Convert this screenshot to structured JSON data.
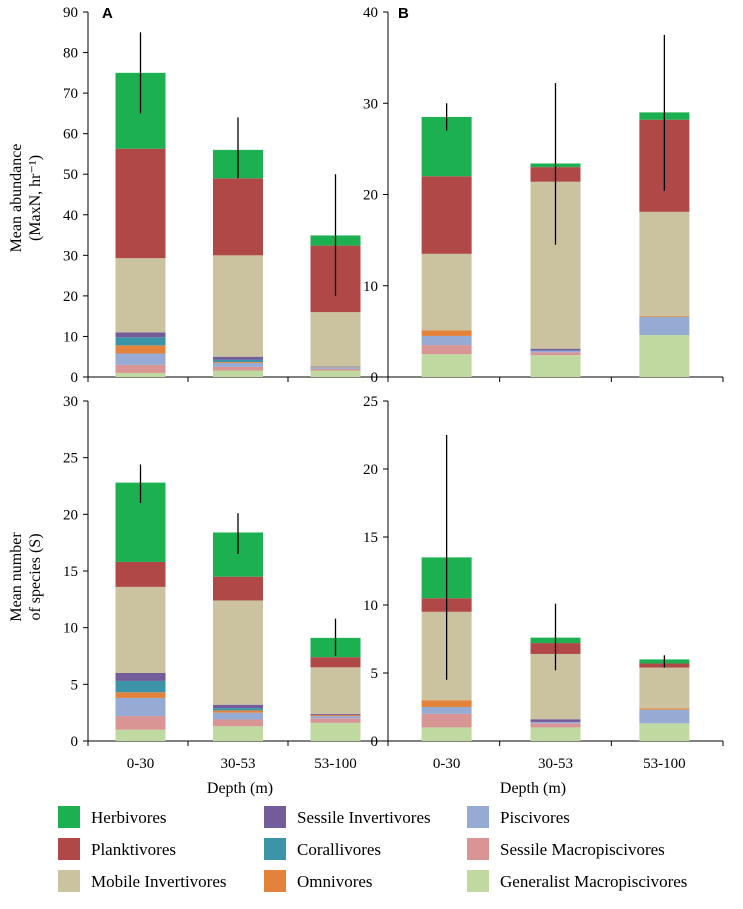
{
  "legend": [
    {
      "name": "Herbivores",
      "color": "#1DB050"
    },
    {
      "name": "Planktivores",
      "color": "#B04848"
    },
    {
      "name": "Mobile Invertivores",
      "color": "#CBC3A0"
    },
    {
      "name": "Sessile Invertivores",
      "color": "#725C9A"
    },
    {
      "name": "Corallivores",
      "color": "#3B94A8"
    },
    {
      "name": "Omnivores",
      "color": "#E3823A"
    },
    {
      "name": "Piscivores",
      "color": "#96ABD4"
    },
    {
      "name": "Sessile Macropiscivores",
      "color": "#D99594"
    },
    {
      "name": "Generalist Macropiscivores",
      "color": "#BFD9A0"
    }
  ],
  "y_label_abundance": [
    "Mean abundance",
    "(MaxN, hr⁻¹)"
  ],
  "y_label_species": [
    "Mean number",
    "of species (S)"
  ],
  "chart_data": [
    {
      "type": "bar",
      "stacked": true,
      "panel": "A",
      "letter": "A",
      "categories": [
        "0-30",
        "30-53",
        "53-100"
      ],
      "ylim": [
        0,
        90
      ],
      "yticks": [
        0,
        10,
        20,
        30,
        40,
        50,
        60,
        70,
        80,
        90
      ],
      "ylabel": "Mean abundance (MaxN, hr⁻¹)",
      "xlabel": "",
      "series": [
        {
          "name": "Generalist Macropiscivores",
          "values": [
            1.0,
            1.6,
            1.6
          ]
        },
        {
          "name": "Sessile Macropiscivores",
          "values": [
            2.0,
            0.9,
            0.4
          ]
        },
        {
          "name": "Piscivores",
          "values": [
            2.8,
            1.0,
            0.3
          ]
        },
        {
          "name": "Omnivores",
          "values": [
            2.0,
            0.2,
            0.1
          ]
        },
        {
          "name": "Corallivores",
          "values": [
            2.0,
            0.6,
            0.1
          ]
        },
        {
          "name": "Sessile Invertivores",
          "values": [
            1.2,
            0.7,
            0.1
          ]
        },
        {
          "name": "Mobile Invertivores",
          "values": [
            18.3,
            25.0,
            13.4
          ]
        },
        {
          "name": "Planktivores",
          "values": [
            27.0,
            19.0,
            16.4
          ]
        },
        {
          "name": "Herbivores",
          "values": [
            18.7,
            7.0,
            2.5
          ]
        }
      ],
      "error": {
        "low": [
          65,
          49,
          20
        ],
        "high": [
          85,
          64,
          50
        ]
      }
    },
    {
      "type": "bar",
      "stacked": true,
      "panel": "B",
      "letter": "B",
      "categories": [
        "0-30",
        "30-53",
        "53-100"
      ],
      "ylim": [
        0,
        40
      ],
      "yticks": [
        0,
        10,
        20,
        30,
        40
      ],
      "ylabel": "",
      "xlabel": "",
      "series": [
        {
          "name": "Generalist Macropiscivores",
          "values": [
            2.5,
            2.4,
            4.6
          ]
        },
        {
          "name": "Sessile Macropiscivores",
          "values": [
            1.0,
            0.3,
            0.0
          ]
        },
        {
          "name": "Piscivores",
          "values": [
            1.0,
            0.2,
            2.0
          ]
        },
        {
          "name": "Omnivores",
          "values": [
            0.6,
            0.0,
            0.1
          ]
        },
        {
          "name": "Corallivores",
          "values": [
            0.0,
            0.0,
            0.0
          ]
        },
        {
          "name": "Sessile Invertivores",
          "values": [
            0.0,
            0.2,
            0.0
          ]
        },
        {
          "name": "Mobile Invertivores",
          "values": [
            8.4,
            18.3,
            11.4
          ]
        },
        {
          "name": "Planktivores",
          "values": [
            8.5,
            1.6,
            10.1
          ]
        },
        {
          "name": "Herbivores",
          "values": [
            6.5,
            0.4,
            0.8
          ]
        }
      ],
      "error": {
        "low": [
          27,
          14.5,
          20.4
        ],
        "high": [
          30,
          32.2,
          37.5
        ]
      }
    },
    {
      "type": "bar",
      "stacked": true,
      "panel": "C",
      "letter": "",
      "categories": [
        "0-30",
        "30-53",
        "53-100"
      ],
      "ylim": [
        0,
        30
      ],
      "yticks": [
        0,
        5,
        10,
        15,
        20,
        25,
        30
      ],
      "ylabel": "Mean number of species (S)",
      "xlabel": "Depth (m)",
      "series": [
        {
          "name": "Generalist Macropiscivores",
          "values": [
            1.0,
            1.3,
            1.6
          ]
        },
        {
          "name": "Sessile Macropiscivores",
          "values": [
            1.2,
            0.6,
            0.4
          ]
        },
        {
          "name": "Piscivores",
          "values": [
            1.6,
            0.6,
            0.2
          ]
        },
        {
          "name": "Omnivores",
          "values": [
            0.5,
            0.2,
            0.1
          ]
        },
        {
          "name": "Corallivores",
          "values": [
            1.0,
            0.2,
            0.0
          ]
        },
        {
          "name": "Sessile Invertivores",
          "values": [
            0.7,
            0.3,
            0.1
          ]
        },
        {
          "name": "Mobile Invertivores",
          "values": [
            7.6,
            9.2,
            4.1
          ]
        },
        {
          "name": "Planktivores",
          "values": [
            2.2,
            2.1,
            0.9
          ]
        },
        {
          "name": "Herbivores",
          "values": [
            7.0,
            3.9,
            1.7
          ]
        }
      ],
      "error": {
        "low": [
          21,
          16.5,
          7.5
        ],
        "high": [
          24.4,
          20.1,
          10.8
        ]
      }
    },
    {
      "type": "bar",
      "stacked": true,
      "panel": "D",
      "letter": "",
      "categories": [
        "0-30",
        "30-53",
        "53-100"
      ],
      "ylim": [
        0,
        25
      ],
      "yticks": [
        0,
        5,
        10,
        15,
        20,
        25
      ],
      "ylabel": "",
      "xlabel": "Depth (m)",
      "series": [
        {
          "name": "Generalist Macropiscivores",
          "values": [
            1.0,
            1.0,
            1.3
          ]
        },
        {
          "name": "Sessile Macropiscivores",
          "values": [
            1.0,
            0.3,
            0.0
          ]
        },
        {
          "name": "Piscivores",
          "values": [
            0.5,
            0.1,
            1.0
          ]
        },
        {
          "name": "Omnivores",
          "values": [
            0.5,
            0.0,
            0.1
          ]
        },
        {
          "name": "Corallivores",
          "values": [
            0.0,
            0.0,
            0.0
          ]
        },
        {
          "name": "Sessile Invertivores",
          "values": [
            0.0,
            0.2,
            0.0
          ]
        },
        {
          "name": "Mobile Invertivores",
          "values": [
            6.5,
            4.8,
            3.0
          ]
        },
        {
          "name": "Planktivores",
          "values": [
            1.0,
            0.8,
            0.3
          ]
        },
        {
          "name": "Herbivores",
          "values": [
            3.0,
            0.4,
            0.3
          ]
        }
      ],
      "error": {
        "low": [
          4.5,
          5.2,
          5.4
        ],
        "high": [
          22.5,
          10.1,
          6.3
        ]
      }
    }
  ]
}
